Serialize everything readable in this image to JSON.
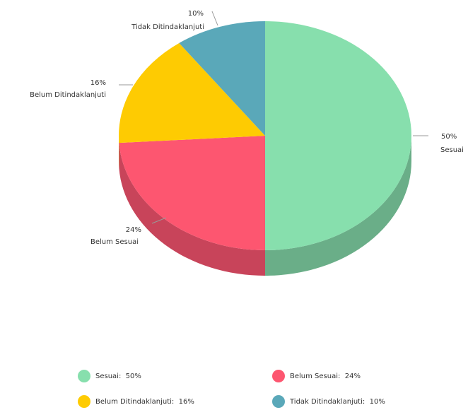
{
  "chart_data": {
    "type": "pie",
    "style": "3d",
    "slices": [
      {
        "name": "Sesuai",
        "value": 50,
        "label": "50%",
        "color": "#87dfad",
        "side_color": "#6aae88"
      },
      {
        "name": "Belum Sesuai",
        "value": 24,
        "label": "24%",
        "color": "#fd5670",
        "side_color": "#c8445a"
      },
      {
        "name": "Belum Ditindaklanjuti",
        "value": 16,
        "label": "16%",
        "color": "#fecb02",
        "side_color": "#c79f02"
      },
      {
        "name": "Tidak Ditindaklanjuti",
        "value": 10,
        "label": "10%",
        "color": "#5aa8b9",
        "side_color": "#468493"
      }
    ],
    "legend": {
      "placement": "bottom",
      "entries": [
        {
          "text": "Sesuai:  50%",
          "color": "#87dfad"
        },
        {
          "text": "Belum Sesuai:  24%",
          "color": "#fd5670"
        },
        {
          "text": "Belum Ditindaklanjuti:  16%",
          "color": "#fecb02"
        },
        {
          "text": "Tidak Ditindaklanjuti:  10%",
          "color": "#5aa8b9"
        }
      ]
    }
  }
}
